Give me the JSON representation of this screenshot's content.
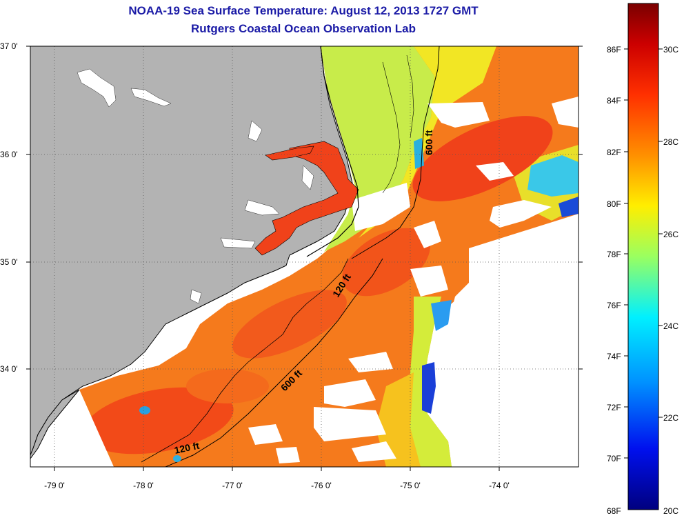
{
  "title": "NOAA-19 Sea Surface Temperature:  August 12, 2013 1727 GMT",
  "subtitle": "Rutgers Coastal Ocean Observation Lab",
  "map": {
    "lat_labels": [
      "37 0'",
      "36 0'",
      "35 0'",
      "34 0'"
    ],
    "lon_labels": [
      "-79 0'",
      "-78 0'",
      "-77 0'",
      "-76 0'",
      "-75 0'",
      "-74 0'"
    ],
    "contour_labels": [
      "600 ft",
      "120 ft",
      "600 ft",
      "120 ft"
    ],
    "colors": {
      "land": "#b3b3b3",
      "no_data": "#ffffff",
      "coast": "#000000"
    }
  },
  "colorbar": {
    "fahrenheit_labels": [
      "86F",
      "84F",
      "82F",
      "80F",
      "78F",
      "76F",
      "74F",
      "72F",
      "70F",
      "68F"
    ],
    "celsius_labels": [
      "30C",
      "28C",
      "26C",
      "24C",
      "22C",
      "20C"
    ],
    "stops": [
      "#800000",
      "#ff0000",
      "#ff8000",
      "#ffff00",
      "#80ff80",
      "#00ffff",
      "#0080ff",
      "#0000ff",
      "#00008f"
    ]
  }
}
